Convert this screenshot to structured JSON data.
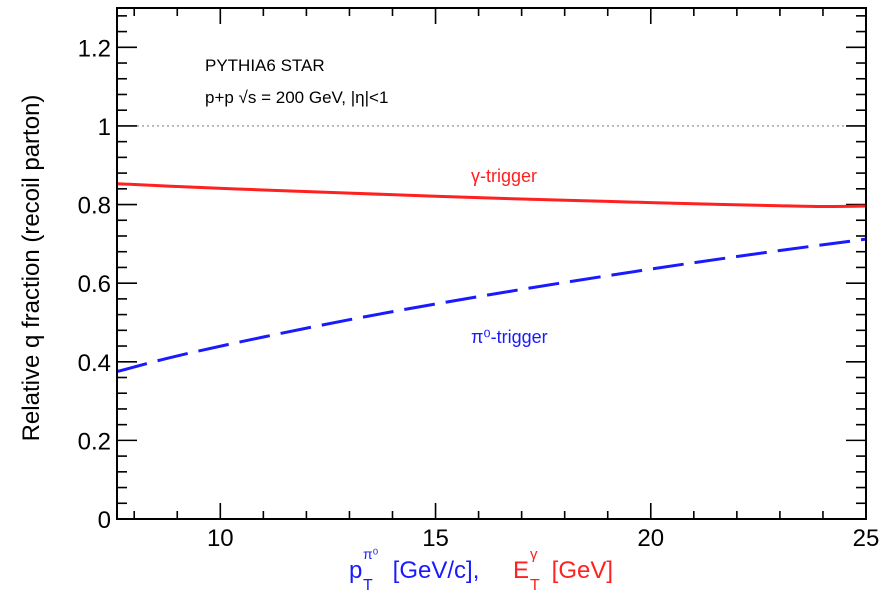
{
  "chart_data": {
    "type": "line",
    "annotations": [
      "PYTHIA6 STAR",
      "p+p √s = 200 GeV, |η|<1"
    ],
    "xlabel": {
      "part1": {
        "base": "p",
        "sub": "T",
        "sup": "π⁰",
        "rest": " [GeV/c],"
      },
      "part2": {
        "base": "E",
        "sub": "T",
        "sup": "γ",
        "rest": " [GeV]"
      }
    },
    "ylabel": "Relative q fraction (recoil parton)",
    "xlim": [
      7.6,
      25
    ],
    "ylim": [
      0,
      1.3
    ],
    "xticks_major": [
      10,
      15,
      20,
      25
    ],
    "xtick_labels": [
      "10",
      "15",
      "20",
      "25"
    ],
    "yticks_major": [
      0,
      0.2,
      0.4,
      0.6,
      0.8,
      1,
      1.2
    ],
    "ytick_labels": [
      "0",
      "0.2",
      "0.4",
      "0.6",
      "0.8",
      "1",
      "1.2"
    ],
    "reference_line": {
      "y": 1,
      "style": "dotted",
      "color": "#888888"
    },
    "series": [
      {
        "name": "γ-trigger",
        "color": "#ff2020",
        "style": "solid",
        "x": [
          7.6,
          9,
          11,
          13,
          15,
          17,
          19,
          21,
          23,
          24,
          25
        ],
        "y": [
          0.853,
          0.846,
          0.837,
          0.829,
          0.821,
          0.814,
          0.808,
          0.802,
          0.797,
          0.795,
          0.796
        ]
      },
      {
        "name": "π⁰-trigger",
        "color": "#1a1aff",
        "style": "dashed",
        "x": [
          7.6,
          9,
          11,
          13,
          15,
          17,
          19,
          21,
          23,
          25
        ],
        "y": [
          0.375,
          0.415,
          0.463,
          0.507,
          0.547,
          0.584,
          0.619,
          0.652,
          0.683,
          0.712
        ]
      }
    ]
  }
}
